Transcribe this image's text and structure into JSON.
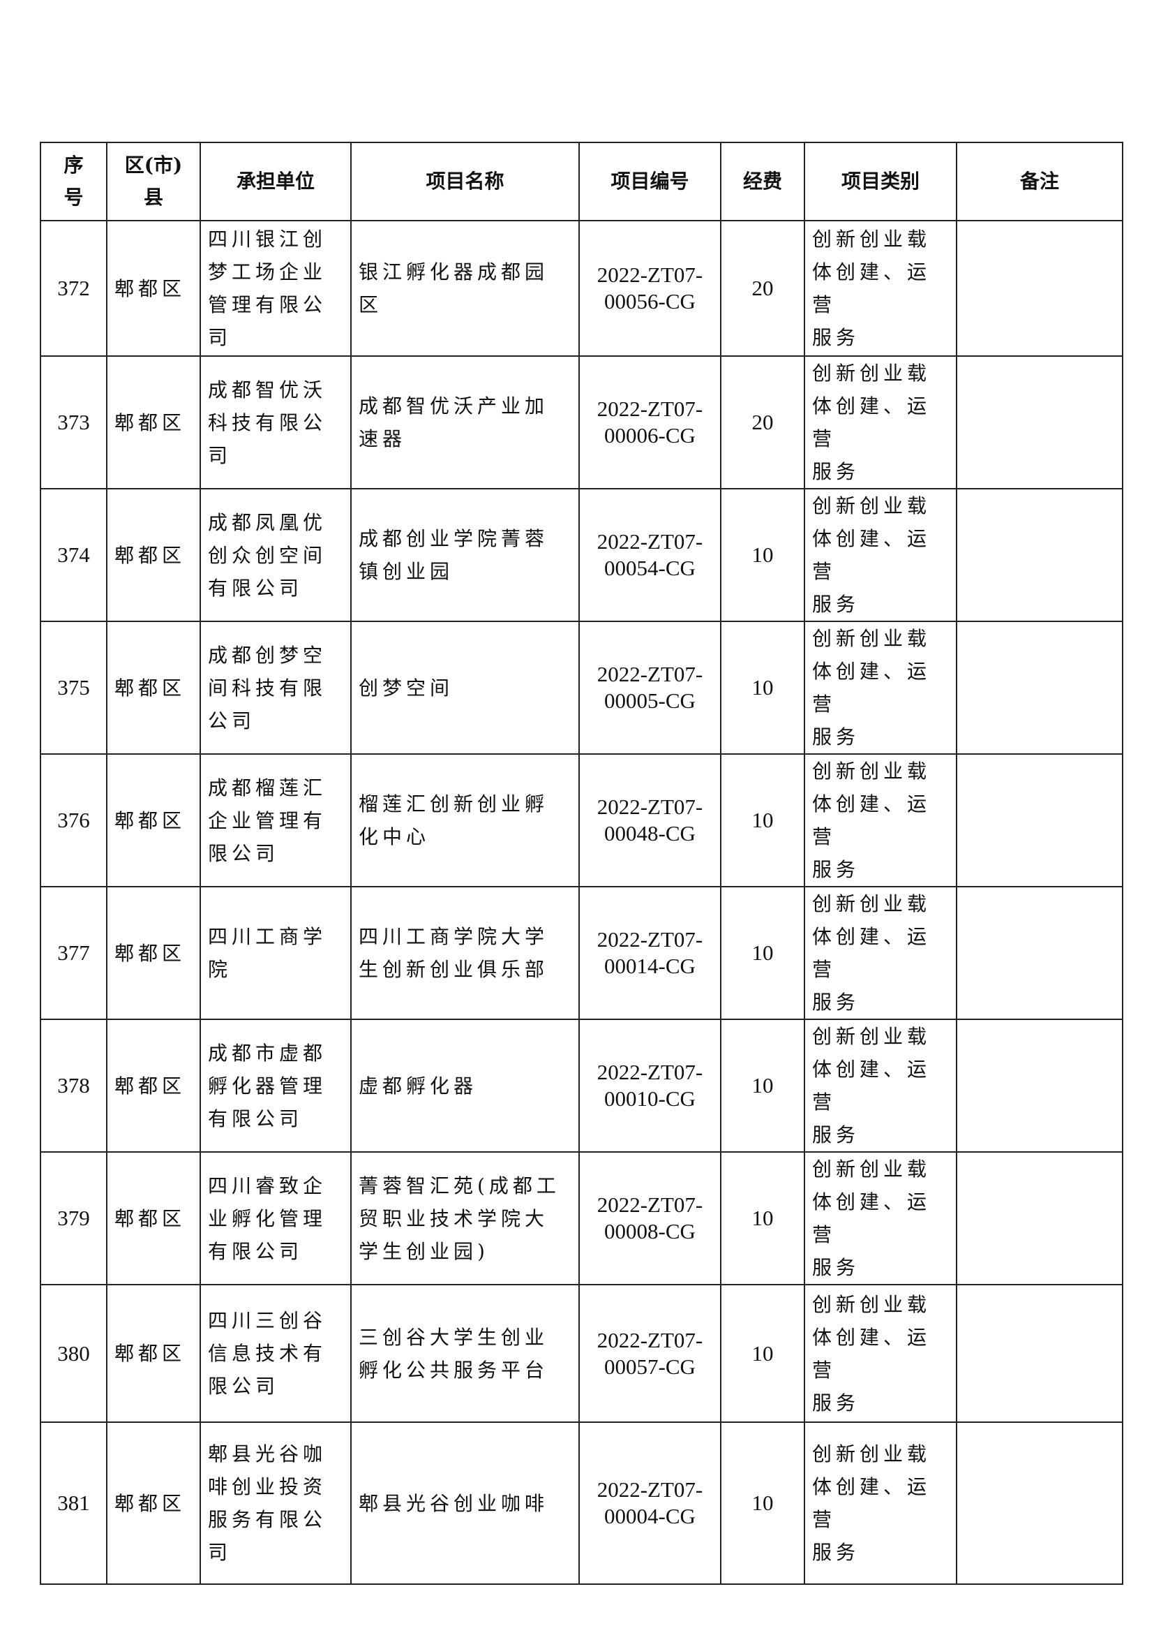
{
  "table": {
    "headers": [
      "序\n号",
      "区(市)\n县",
      "承担单位",
      "项目名称",
      "项目编号",
      "经费",
      "项目类别",
      "备注"
    ],
    "rows": [
      {
        "no": "372",
        "district": "郫都区",
        "unit": "四川银江创\n梦工场企业\n管理有限公\n司",
        "project": "银江孵化器成都园\n区",
        "code": "2022-ZT07-\n00056-CG",
        "fund": "20",
        "category": "创新创业载\n体创建、运营\n服务",
        "note": ""
      },
      {
        "no": "373",
        "district": "郫都区",
        "unit": "成都智优沃\n科技有限公\n司",
        "project": "成都智优沃产业加\n速器",
        "code": "2022-ZT07-\n00006-CG",
        "fund": "20",
        "category": "创新创业载\n体创建、运营\n服务",
        "note": ""
      },
      {
        "no": "374",
        "district": "郫都区",
        "unit": "成都凤凰优\n创众创空间\n有限公司",
        "project": "成都创业学院菁蓉\n镇创业园",
        "code": "2022-ZT07-\n00054-CG",
        "fund": "10",
        "category": "创新创业载\n体创建、运营\n服务",
        "note": ""
      },
      {
        "no": "375",
        "district": "郫都区",
        "unit": "成都创梦空\n间科技有限\n公司",
        "project": "创梦空间",
        "code": "2022-ZT07-\n00005-CG",
        "fund": "10",
        "category": "创新创业载\n体创建、运营\n服务",
        "note": ""
      },
      {
        "no": "376",
        "district": "郫都区",
        "unit": "成都榴莲汇\n企业管理有\n限公司",
        "project": "榴莲汇创新创业孵\n化中心",
        "code": "2022-ZT07-\n00048-CG",
        "fund": "10",
        "category": "创新创业载\n体创建、运营\n服务",
        "note": ""
      },
      {
        "no": "377",
        "district": "郫都区",
        "unit": "四川工商学\n院",
        "project": "四川工商学院大学\n生创新创业俱乐部",
        "code": "2022-ZT07-\n00014-CG",
        "fund": "10",
        "category": "创新创业载\n体创建、运营\n服务",
        "note": ""
      },
      {
        "no": "378",
        "district": "郫都区",
        "unit": "成都市虚都\n孵化器管理\n有限公司",
        "project": "虚都孵化器",
        "code": "2022-ZT07-\n00010-CG",
        "fund": "10",
        "category": "创新创业载\n体创建、运营\n服务",
        "note": ""
      },
      {
        "no": "379",
        "district": "郫都区",
        "unit": "四川睿致企\n业孵化管理\n有限公司",
        "project": "菁蓉智汇苑(成都工\n贸职业技术学院大\n学生创业园)",
        "code": "2022-ZT07-\n00008-CG",
        "fund": "10",
        "category": "创新创业载\n体创建、运营\n服务",
        "note": ""
      },
      {
        "no": "380",
        "district": "郫都区",
        "unit": "四川三创谷\n信息技术有\n限公司",
        "project": "三创谷大学生创业\n孵化公共服务平台",
        "code": "2022-ZT07-\n00057-CG",
        "fund": "10",
        "category": "创新创业载\n体创建、运营\n服务",
        "note": ""
      },
      {
        "no": "381",
        "district": "郫都区",
        "unit": "郫县光谷咖\n啡创业投资\n服务有限公\n司",
        "project": "郫县光谷创业咖啡",
        "code": "2022-ZT07-\n00004-CG",
        "fund": "10",
        "category": "创新创业载\n体创建、运营\n服务",
        "note": ""
      }
    ]
  }
}
